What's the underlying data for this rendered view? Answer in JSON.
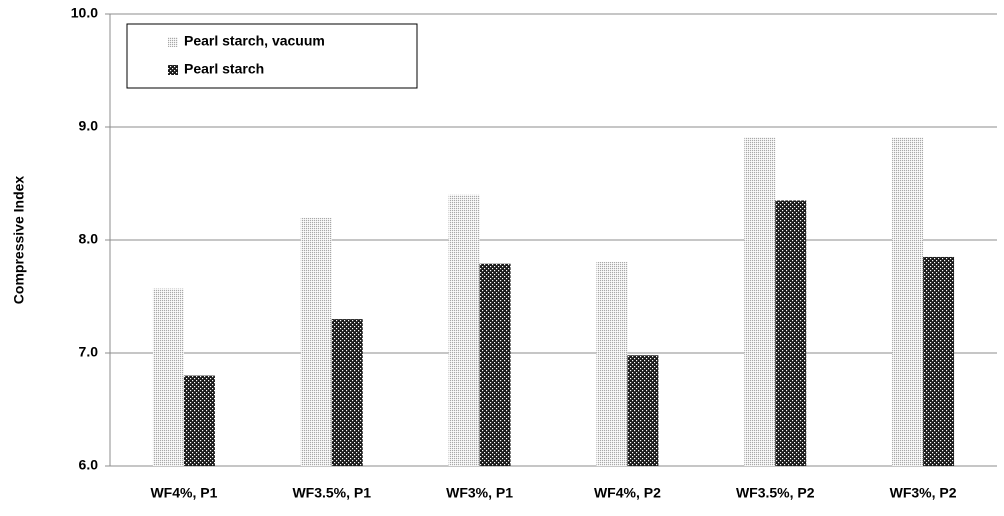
{
  "chart_data": {
    "type": "bar",
    "y_label": "Compressive Index",
    "categories": [
      "WF4%, P1",
      "WF3.5%, P1",
      "WF3%, P1",
      "WF4%, P2",
      "WF3.5%, P2",
      "WF3%, P2"
    ],
    "series": [
      {
        "name": "Pearl starch, vacuum",
        "color": "#a8a8a8",
        "values": [
          7.57,
          8.2,
          8.4,
          7.81,
          8.91,
          8.91
        ]
      },
      {
        "name": "Pearl starch",
        "color": "#1a1a1a",
        "values": [
          6.8,
          7.3,
          7.79,
          6.98,
          8.35,
          7.85
        ]
      }
    ],
    "ylim": [
      6,
      10
    ],
    "yticks": [
      {
        "value": 6,
        "label": "6.0"
      },
      {
        "value": 7,
        "label": "7.0"
      },
      {
        "value": 8,
        "label": "8.0"
      },
      {
        "value": 9,
        "label": "9.0"
      },
      {
        "value": 10,
        "label": "10.0"
      }
    ],
    "grid": true,
    "legend": "upper left"
  }
}
